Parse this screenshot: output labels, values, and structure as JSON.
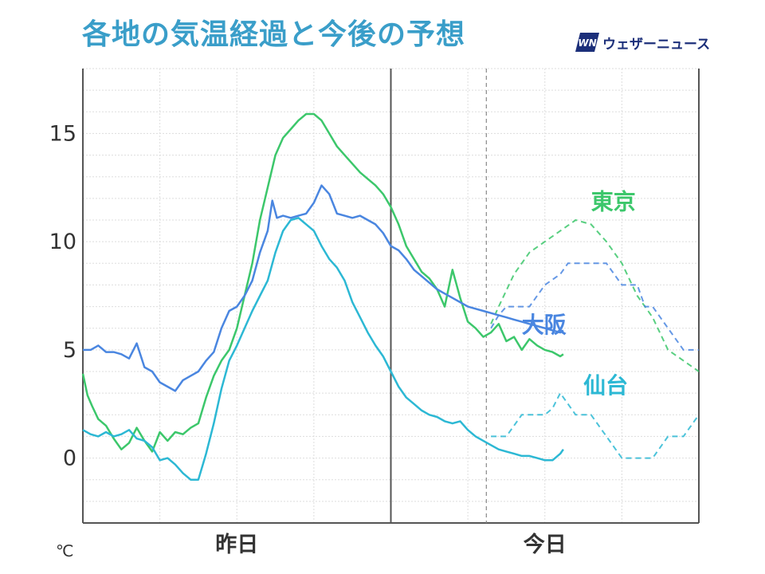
{
  "title": "各地の気温経過と今後の予想",
  "brand": {
    "logo_text": "WN",
    "name": "ウェザーニュース"
  },
  "chart_data": {
    "type": "line",
    "title": "各地の気温経過と今後の予想",
    "unit": "℃",
    "x_labels": [
      "昨日",
      "今日"
    ],
    "y_ticks": [
      0,
      5,
      10,
      15
    ],
    "ylim": [
      -3,
      18
    ],
    "xlim": [
      0,
      40
    ],
    "grid": true,
    "now_x": 26.2,
    "day_boundary_x": 20,
    "series": [
      {
        "name": "東京",
        "color": "#3cc76b",
        "observed": [
          [
            0.0,
            3.9
          ],
          [
            0.3,
            2.9
          ],
          [
            0.6,
            2.4
          ],
          [
            1.0,
            1.8
          ],
          [
            1.5,
            1.5
          ],
          [
            2.0,
            0.9
          ],
          [
            2.5,
            0.4
          ],
          [
            3.0,
            0.7
          ],
          [
            3.5,
            1.4
          ],
          [
            4.0,
            0.8
          ],
          [
            4.5,
            0.3
          ],
          [
            5.0,
            1.2
          ],
          [
            5.5,
            0.8
          ],
          [
            6.0,
            1.2
          ],
          [
            6.5,
            1.1
          ],
          [
            7.0,
            1.4
          ],
          [
            7.5,
            1.6
          ],
          [
            8.0,
            2.8
          ],
          [
            8.5,
            3.8
          ],
          [
            9.0,
            4.5
          ],
          [
            9.5,
            5.0
          ],
          [
            10.0,
            6.0
          ],
          [
            10.5,
            7.5
          ],
          [
            11.0,
            9.0
          ],
          [
            11.5,
            11.0
          ],
          [
            12.0,
            12.5
          ],
          [
            12.5,
            14.0
          ],
          [
            13.0,
            14.8
          ],
          [
            13.5,
            15.2
          ],
          [
            14.0,
            15.6
          ],
          [
            14.5,
            15.9
          ],
          [
            15.0,
            15.9
          ],
          [
            15.5,
            15.6
          ],
          [
            16.0,
            15.0
          ],
          [
            16.5,
            14.4
          ],
          [
            17.0,
            14.0
          ],
          [
            17.5,
            13.6
          ],
          [
            18.0,
            13.2
          ],
          [
            18.5,
            12.9
          ],
          [
            19.0,
            12.6
          ],
          [
            19.5,
            12.2
          ],
          [
            20.0,
            11.6
          ],
          [
            20.5,
            10.8
          ],
          [
            21.0,
            9.8
          ],
          [
            21.5,
            9.2
          ],
          [
            22.0,
            8.6
          ],
          [
            22.5,
            8.3
          ],
          [
            23.0,
            7.8
          ],
          [
            23.5,
            7.0
          ],
          [
            24.0,
            8.7
          ],
          [
            24.5,
            7.4
          ],
          [
            25.0,
            6.3
          ],
          [
            25.5,
            6.0
          ],
          [
            26.0,
            5.6
          ],
          [
            26.5,
            5.8
          ],
          [
            27.0,
            6.2
          ],
          [
            27.5,
            5.4
          ],
          [
            28.0,
            5.6
          ],
          [
            28.5,
            5.0
          ],
          [
            29.0,
            5.5
          ],
          [
            29.5,
            5.2
          ],
          [
            30.0,
            5.0
          ],
          [
            30.5,
            4.9
          ],
          [
            31.0,
            4.7
          ],
          [
            31.2,
            4.8
          ]
        ],
        "forecast": [
          [
            26.5,
            6.2
          ],
          [
            27.0,
            7.0
          ],
          [
            28.0,
            8.5
          ],
          [
            29.0,
            9.5
          ],
          [
            30.0,
            10.0
          ],
          [
            31.0,
            10.5
          ],
          [
            32.0,
            11.0
          ],
          [
            33.0,
            10.8
          ],
          [
            34.0,
            10.0
          ],
          [
            35.0,
            9.0
          ],
          [
            36.0,
            7.5
          ],
          [
            37.0,
            6.5
          ],
          [
            38.0,
            5.0
          ],
          [
            39.0,
            4.5
          ],
          [
            40.0,
            4.0
          ]
        ],
        "label_xy": [
          33.0,
          11.5
        ]
      },
      {
        "name": "大阪",
        "color": "#4a86e0",
        "observed": [
          [
            0.0,
            5.0
          ],
          [
            0.5,
            5.0
          ],
          [
            1.0,
            5.2
          ],
          [
            1.5,
            4.9
          ],
          [
            2.0,
            4.9
          ],
          [
            2.5,
            4.8
          ],
          [
            3.0,
            4.6
          ],
          [
            3.5,
            5.3
          ],
          [
            4.0,
            4.2
          ],
          [
            4.5,
            4.0
          ],
          [
            5.0,
            3.5
          ],
          [
            5.5,
            3.3
          ],
          [
            6.0,
            3.1
          ],
          [
            6.5,
            3.6
          ],
          [
            7.0,
            3.8
          ],
          [
            7.5,
            4.0
          ],
          [
            8.0,
            4.5
          ],
          [
            8.5,
            4.9
          ],
          [
            9.0,
            6.0
          ],
          [
            9.5,
            6.8
          ],
          [
            10.0,
            7.0
          ],
          [
            10.5,
            7.5
          ],
          [
            11.0,
            8.2
          ],
          [
            11.5,
            9.5
          ],
          [
            12.0,
            10.5
          ],
          [
            12.3,
            11.9
          ],
          [
            12.6,
            11.1
          ],
          [
            13.0,
            11.2
          ],
          [
            13.5,
            11.1
          ],
          [
            14.0,
            11.2
          ],
          [
            14.5,
            11.3
          ],
          [
            15.0,
            11.8
          ],
          [
            15.5,
            12.6
          ],
          [
            16.0,
            12.2
          ],
          [
            16.5,
            11.3
          ],
          [
            17.0,
            11.2
          ],
          [
            17.5,
            11.1
          ],
          [
            18.0,
            11.2
          ],
          [
            18.5,
            11.0
          ],
          [
            19.0,
            10.8
          ],
          [
            19.5,
            10.4
          ],
          [
            20.0,
            9.8
          ],
          [
            20.5,
            9.6
          ],
          [
            21.0,
            9.2
          ],
          [
            21.5,
            8.7
          ],
          [
            22.0,
            8.4
          ],
          [
            22.5,
            8.1
          ],
          [
            23.0,
            7.8
          ],
          [
            23.5,
            7.6
          ],
          [
            24.0,
            7.4
          ],
          [
            24.5,
            7.2
          ],
          [
            25.0,
            7.0
          ],
          [
            25.5,
            6.9
          ],
          [
            26.0,
            6.8
          ],
          [
            26.5,
            6.7
          ],
          [
            27.0,
            6.6
          ],
          [
            27.5,
            6.5
          ],
          [
            28.0,
            6.4
          ],
          [
            28.5,
            6.3
          ],
          [
            29.0,
            6.2
          ],
          [
            29.5,
            6.1
          ],
          [
            30.0,
            6.0
          ],
          [
            30.5,
            5.9
          ],
          [
            31.0,
            5.8
          ],
          [
            31.2,
            5.9
          ]
        ],
        "forecast": [
          [
            26.5,
            6.0
          ],
          [
            27.0,
            6.6
          ],
          [
            27.5,
            7.0
          ],
          [
            29.0,
            7.0
          ],
          [
            29.5,
            7.5
          ],
          [
            30.0,
            8.0
          ],
          [
            31.0,
            8.5
          ],
          [
            31.5,
            9.0
          ],
          [
            34.0,
            9.0
          ],
          [
            35.0,
            8.0
          ],
          [
            36.0,
            8.0
          ],
          [
            36.5,
            7.0
          ],
          [
            37.0,
            7.0
          ],
          [
            38.0,
            6.0
          ],
          [
            39.0,
            5.0
          ],
          [
            40.0,
            5.0
          ]
        ],
        "label_xy": [
          28.5,
          5.8
        ]
      },
      {
        "name": "仙台",
        "color": "#2cb8d4",
        "observed": [
          [
            0.0,
            1.3
          ],
          [
            0.5,
            1.1
          ],
          [
            1.0,
            1.0
          ],
          [
            1.5,
            1.2
          ],
          [
            2.0,
            1.0
          ],
          [
            2.5,
            1.1
          ],
          [
            3.0,
            1.3
          ],
          [
            3.5,
            0.9
          ],
          [
            4.0,
            0.8
          ],
          [
            4.5,
            0.5
          ],
          [
            5.0,
            -0.1
          ],
          [
            5.5,
            0.0
          ],
          [
            6.0,
            -0.3
          ],
          [
            6.5,
            -0.7
          ],
          [
            7.0,
            -1.0
          ],
          [
            7.5,
            -1.0
          ],
          [
            8.0,
            0.2
          ],
          [
            8.5,
            1.6
          ],
          [
            9.0,
            3.2
          ],
          [
            9.5,
            4.5
          ],
          [
            10.0,
            5.2
          ],
          [
            10.5,
            6.0
          ],
          [
            11.0,
            6.8
          ],
          [
            11.5,
            7.5
          ],
          [
            12.0,
            8.2
          ],
          [
            12.5,
            9.5
          ],
          [
            13.0,
            10.5
          ],
          [
            13.5,
            11.0
          ],
          [
            14.0,
            11.1
          ],
          [
            14.5,
            10.8
          ],
          [
            15.0,
            10.5
          ],
          [
            15.5,
            9.8
          ],
          [
            16.0,
            9.2
          ],
          [
            16.5,
            8.8
          ],
          [
            17.0,
            8.2
          ],
          [
            17.5,
            7.2
          ],
          [
            18.0,
            6.5
          ],
          [
            18.5,
            5.8
          ],
          [
            19.0,
            5.2
          ],
          [
            19.5,
            4.7
          ],
          [
            20.0,
            4.0
          ],
          [
            20.5,
            3.3
          ],
          [
            21.0,
            2.8
          ],
          [
            21.5,
            2.5
          ],
          [
            22.0,
            2.2
          ],
          [
            22.5,
            2.0
          ],
          [
            23.0,
            1.9
          ],
          [
            23.5,
            1.7
          ],
          [
            24.0,
            1.6
          ],
          [
            24.5,
            1.7
          ],
          [
            25.0,
            1.3
          ],
          [
            25.5,
            1.0
          ],
          [
            26.0,
            0.8
          ],
          [
            26.5,
            0.6
          ],
          [
            27.0,
            0.4
          ],
          [
            27.5,
            0.3
          ],
          [
            28.0,
            0.2
          ],
          [
            28.5,
            0.1
          ],
          [
            29.0,
            0.1
          ],
          [
            29.5,
            0.0
          ],
          [
            30.0,
            -0.1
          ],
          [
            30.5,
            -0.1
          ],
          [
            31.0,
            0.2
          ],
          [
            31.2,
            0.4
          ]
        ],
        "forecast": [
          [
            26.5,
            1.0
          ],
          [
            27.5,
            1.0
          ],
          [
            28.5,
            2.0
          ],
          [
            30.0,
            2.0
          ],
          [
            30.5,
            2.3
          ],
          [
            31.0,
            3.0
          ],
          [
            32.0,
            2.0
          ],
          [
            33.0,
            2.0
          ],
          [
            34.0,
            1.0
          ],
          [
            35.0,
            0.0
          ],
          [
            37.0,
            0.0
          ],
          [
            38.0,
            1.0
          ],
          [
            39.0,
            1.0
          ],
          [
            40.0,
            2.0
          ]
        ],
        "label_xy": [
          32.5,
          3.0
        ]
      }
    ]
  }
}
